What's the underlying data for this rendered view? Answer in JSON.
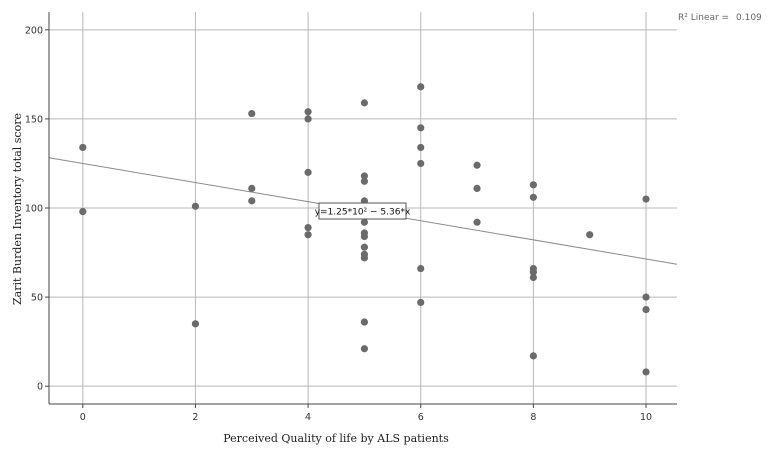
{
  "chart_data": {
    "type": "scatter",
    "title": "",
    "xlabel": "Perceived Quality  of life by  ALS patients",
    "ylabel": "Zarit Burden Inventory total score",
    "xlim": [
      -0.6,
      10.55
    ],
    "ylim": [
      -10,
      210
    ],
    "xticks": [
      0,
      2,
      4,
      6,
      8,
      10
    ],
    "yticks": [
      0,
      50,
      100,
      150,
      200
    ],
    "grid": true,
    "points": [
      {
        "x": 0,
        "y": 134
      },
      {
        "x": 0,
        "y": 98
      },
      {
        "x": 2,
        "y": 101
      },
      {
        "x": 2,
        "y": 35
      },
      {
        "x": 3,
        "y": 153
      },
      {
        "x": 3,
        "y": 111
      },
      {
        "x": 3,
        "y": 104
      },
      {
        "x": 4,
        "y": 154
      },
      {
        "x": 4,
        "y": 150
      },
      {
        "x": 4,
        "y": 120
      },
      {
        "x": 4,
        "y": 89
      },
      {
        "x": 4,
        "y": 85
      },
      {
        "x": 5,
        "y": 159
      },
      {
        "x": 5,
        "y": 118
      },
      {
        "x": 5,
        "y": 115
      },
      {
        "x": 5,
        "y": 104
      },
      {
        "x": 5,
        "y": 92
      },
      {
        "x": 5,
        "y": 86
      },
      {
        "x": 5,
        "y": 84
      },
      {
        "x": 5,
        "y": 78
      },
      {
        "x": 5,
        "y": 74
      },
      {
        "x": 5,
        "y": 72
      },
      {
        "x": 5,
        "y": 36
      },
      {
        "x": 5,
        "y": 21
      },
      {
        "x": 6,
        "y": 168
      },
      {
        "x": 6,
        "y": 145
      },
      {
        "x": 6,
        "y": 134
      },
      {
        "x": 6,
        "y": 125
      },
      {
        "x": 6,
        "y": 66
      },
      {
        "x": 6,
        "y": 47
      },
      {
        "x": 7,
        "y": 124
      },
      {
        "x": 7,
        "y": 111
      },
      {
        "x": 7,
        "y": 92
      },
      {
        "x": 8,
        "y": 113
      },
      {
        "x": 8,
        "y": 106
      },
      {
        "x": 8,
        "y": 66
      },
      {
        "x": 8,
        "y": 64
      },
      {
        "x": 8,
        "y": 61
      },
      {
        "x": 8,
        "y": 17
      },
      {
        "x": 9,
        "y": 85
      },
      {
        "x": 10,
        "y": 105
      },
      {
        "x": 10,
        "y": 50
      },
      {
        "x": 10,
        "y": 43
      },
      {
        "x": 10,
        "y": 8
      }
    ],
    "fit_line": {
      "intercept": 125,
      "slope": -5.36
    },
    "equation_label": "y=1.25*10² − 5.36*x",
    "r2_label": "R² Linear =",
    "r2_value": "0.109",
    "colors": {
      "points": "#6b6b6b",
      "grid": "#b8b8b8",
      "fit": "#8a8a8a",
      "axis": "#444444"
    }
  }
}
